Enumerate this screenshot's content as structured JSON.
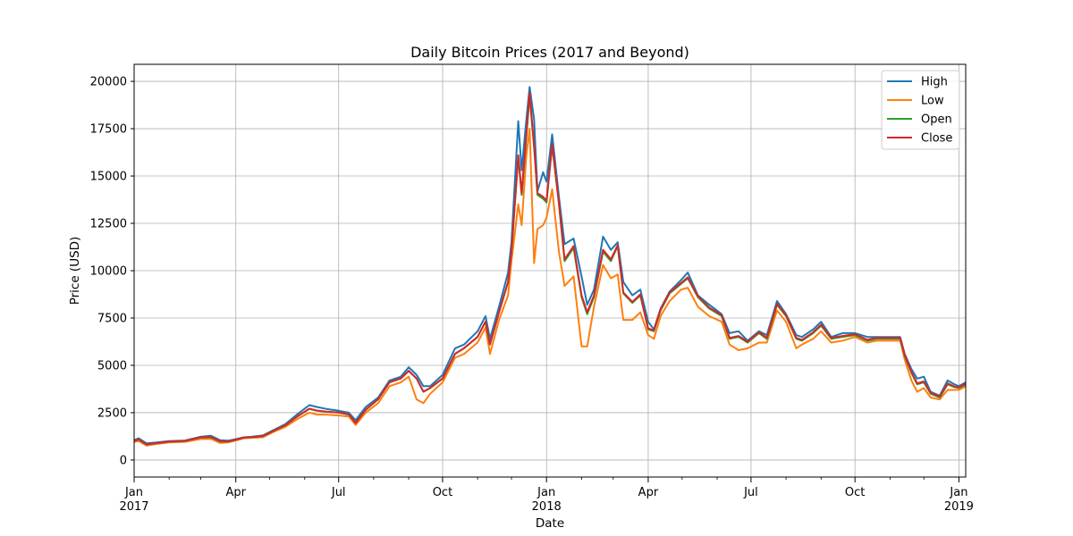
{
  "chart_data": {
    "type": "line",
    "title": "Daily Bitcoin Prices (2017 and Beyond)",
    "xlabel": "Date",
    "ylabel": "Price (USD)",
    "xlim": [
      "2017-01-01",
      "2019-01-07"
    ],
    "ylim": [
      -900,
      20900
    ],
    "grid": true,
    "legend_position": "top-right",
    "y_ticks": [
      0,
      2500,
      5000,
      7500,
      10000,
      12500,
      15000,
      17500,
      20000
    ],
    "x_ticks": [
      {
        "date": "2017-01-01",
        "label": "Jan",
        "sublabel": "2017"
      },
      {
        "date": "2017-04-01",
        "label": "Apr",
        "sublabel": ""
      },
      {
        "date": "2017-07-01",
        "label": "Jul",
        "sublabel": ""
      },
      {
        "date": "2017-10-01",
        "label": "Oct",
        "sublabel": ""
      },
      {
        "date": "2018-01-01",
        "label": "Jan",
        "sublabel": "2018"
      },
      {
        "date": "2018-04-01",
        "label": "Apr",
        "sublabel": ""
      },
      {
        "date": "2018-07-01",
        "label": "Jul",
        "sublabel": ""
      },
      {
        "date": "2018-10-01",
        "label": "Oct",
        "sublabel": ""
      },
      {
        "date": "2019-01-01",
        "label": "Jan",
        "sublabel": "2019"
      }
    ],
    "x_minor_ticks": [
      "2017-02-01",
      "2017-03-01",
      "2017-05-01",
      "2017-06-01",
      "2017-08-01",
      "2017-09-01",
      "2017-11-01",
      "2017-12-01",
      "2018-02-01",
      "2018-03-01",
      "2018-05-01",
      "2018-06-01",
      "2018-08-01",
      "2018-09-01",
      "2018-11-01",
      "2018-12-01"
    ],
    "x": [
      "2017-01-01",
      "2017-01-05",
      "2017-01-12",
      "2017-01-20",
      "2017-02-01",
      "2017-02-15",
      "2017-03-01",
      "2017-03-10",
      "2017-03-18",
      "2017-03-25",
      "2017-04-01",
      "2017-04-08",
      "2017-04-15",
      "2017-04-25",
      "2017-05-05",
      "2017-05-15",
      "2017-05-25",
      "2017-06-05",
      "2017-06-12",
      "2017-06-20",
      "2017-07-01",
      "2017-07-10",
      "2017-07-16",
      "2017-07-25",
      "2017-08-05",
      "2017-08-15",
      "2017-08-25",
      "2017-09-01",
      "2017-09-08",
      "2017-09-14",
      "2017-09-20",
      "2017-10-01",
      "2017-10-12",
      "2017-10-20",
      "2017-11-01",
      "2017-11-08",
      "2017-11-12",
      "2017-11-20",
      "2017-11-28",
      "2017-12-01",
      "2017-12-07",
      "2017-12-10",
      "2017-12-14",
      "2017-12-17",
      "2017-12-21",
      "2017-12-24",
      "2017-12-29",
      "2018-01-01",
      "2018-01-06",
      "2018-01-12",
      "2018-01-17",
      "2018-01-25",
      "2018-02-01",
      "2018-02-06",
      "2018-02-12",
      "2018-02-20",
      "2018-02-27",
      "2018-03-05",
      "2018-03-10",
      "2018-03-18",
      "2018-03-25",
      "2018-04-01",
      "2018-04-06",
      "2018-04-12",
      "2018-04-20",
      "2018-04-30",
      "2018-05-06",
      "2018-05-15",
      "2018-05-25",
      "2018-06-05",
      "2018-06-12",
      "2018-06-20",
      "2018-06-28",
      "2018-07-08",
      "2018-07-15",
      "2018-07-24",
      "2018-08-01",
      "2018-08-10",
      "2018-08-15",
      "2018-08-25",
      "2018-09-01",
      "2018-09-10",
      "2018-09-20",
      "2018-10-01",
      "2018-10-12",
      "2018-10-20",
      "2018-11-01",
      "2018-11-10",
      "2018-11-14",
      "2018-11-20",
      "2018-11-25",
      "2018-12-01",
      "2018-12-07",
      "2018-12-15",
      "2018-12-22",
      "2018-12-28",
      "2019-01-01",
      "2019-01-07"
    ],
    "series": [
      {
        "name": "High",
        "color": "#1f77b4",
        "values": [
          1050,
          1150,
          880,
          920,
          1000,
          1030,
          1230,
          1280,
          1050,
          1020,
          1100,
          1200,
          1230,
          1300,
          1600,
          1900,
          2400,
          2900,
          2800,
          2700,
          2600,
          2500,
          2100,
          2800,
          3300,
          4200,
          4400,
          4900,
          4500,
          3900,
          3900,
          4500,
          5900,
          6100,
          6800,
          7600,
          6400,
          8100,
          9900,
          11500,
          17900,
          15300,
          17900,
          19700,
          18000,
          14200,
          15200,
          14700,
          17200,
          13900,
          11400,
          11700,
          9700,
          8200,
          9000,
          11800,
          11100,
          11500,
          9400,
          8700,
          9000,
          7300,
          6900,
          8000,
          8900,
          9500,
          9900,
          8700,
          8200,
          7700,
          6700,
          6800,
          6300,
          6800,
          6600,
          8400,
          7700,
          6600,
          6500,
          6900,
          7300,
          6500,
          6700,
          6700,
          6500,
          6500,
          6500,
          6500,
          5600,
          4800,
          4300,
          4400,
          3600,
          3400,
          4200,
          4000,
          3900,
          4100
        ]
      },
      {
        "name": "Low",
        "color": "#ff7f0e",
        "values": [
          950,
          1000,
          760,
          840,
          930,
          960,
          1110,
          1120,
          900,
          930,
          1030,
          1150,
          1170,
          1200,
          1500,
          1750,
          2150,
          2500,
          2400,
          2400,
          2350,
          2300,
          1850,
          2500,
          3000,
          3900,
          4100,
          4400,
          3200,
          3000,
          3500,
          4100,
          5400,
          5600,
          6200,
          7000,
          5600,
          7400,
          8700,
          10500,
          13500,
          12400,
          16000,
          17500,
          10400,
          12200,
          12400,
          12800,
          14300,
          11000,
          9200,
          9700,
          6000,
          6000,
          8100,
          10300,
          9600,
          9800,
          7400,
          7400,
          7800,
          6600,
          6400,
          7600,
          8400,
          9000,
          9100,
          8100,
          7600,
          7300,
          6100,
          5800,
          5900,
          6200,
          6200,
          7900,
          7300,
          5900,
          6100,
          6400,
          6800,
          6200,
          6300,
          6500,
          6200,
          6300,
          6300,
          6300,
          5300,
          4200,
          3600,
          3800,
          3300,
          3200,
          3700,
          3700,
          3700,
          3900
        ]
      },
      {
        "name": "Open",
        "color": "#2ca02c",
        "values": [
          1000,
          1080,
          810,
          880,
          970,
          1000,
          1190,
          1200,
          980,
          970,
          1070,
          1180,
          1200,
          1260,
          1550,
          1830,
          2280,
          2700,
          2600,
          2550,
          2500,
          2400,
          1950,
          2650,
          3200,
          4100,
          4300,
          4700,
          4300,
          3600,
          3800,
          4300,
          5600,
          5900,
          6500,
          7300,
          6100,
          7800,
          9400,
          11000,
          16000,
          14000,
          17000,
          19200,
          16500,
          14000,
          13800,
          13600,
          16600,
          13500,
          10500,
          11200,
          8600,
          7700,
          8600,
          11000,
          10500,
          11300,
          8800,
          8300,
          8700,
          6900,
          6800,
          7900,
          8800,
          9300,
          9600,
          8600,
          8000,
          7600,
          6400,
          6500,
          6200,
          6700,
          6400,
          8200,
          7600,
          6400,
          6300,
          6700,
          7100,
          6400,
          6500,
          6600,
          6300,
          6400,
          6400,
          6400,
          5500,
          4600,
          4000,
          4100,
          3500,
          3300,
          4000,
          3850,
          3800,
          4000
        ]
      },
      {
        "name": "Close",
        "color": "#d62728",
        "values": [
          1000,
          1090,
          820,
          890,
          980,
          1010,
          1200,
          1210,
          990,
          975,
          1075,
          1185,
          1205,
          1265,
          1560,
          1840,
          2290,
          2710,
          2610,
          2560,
          2510,
          2410,
          1960,
          2660,
          3210,
          4110,
          4310,
          4710,
          4310,
          3610,
          3810,
          4310,
          5610,
          5910,
          6510,
          7310,
          6110,
          7810,
          9410,
          11010,
          16100,
          14100,
          17100,
          19400,
          16600,
          14100,
          13900,
          13700,
          16700,
          13600,
          10600,
          11300,
          8700,
          7800,
          8700,
          11100,
          10600,
          11350,
          8850,
          8350,
          8750,
          6950,
          6850,
          7950,
          8850,
          9350,
          9650,
          8650,
          8050,
          7650,
          6450,
          6550,
          6250,
          6750,
          6450,
          8250,
          7650,
          6450,
          6350,
          6750,
          7150,
          6450,
          6550,
          6650,
          6350,
          6450,
          6450,
          6450,
          5550,
          4650,
          4050,
          4150,
          3550,
          3350,
          4050,
          3880,
          3830,
          4030
        ]
      }
    ]
  }
}
